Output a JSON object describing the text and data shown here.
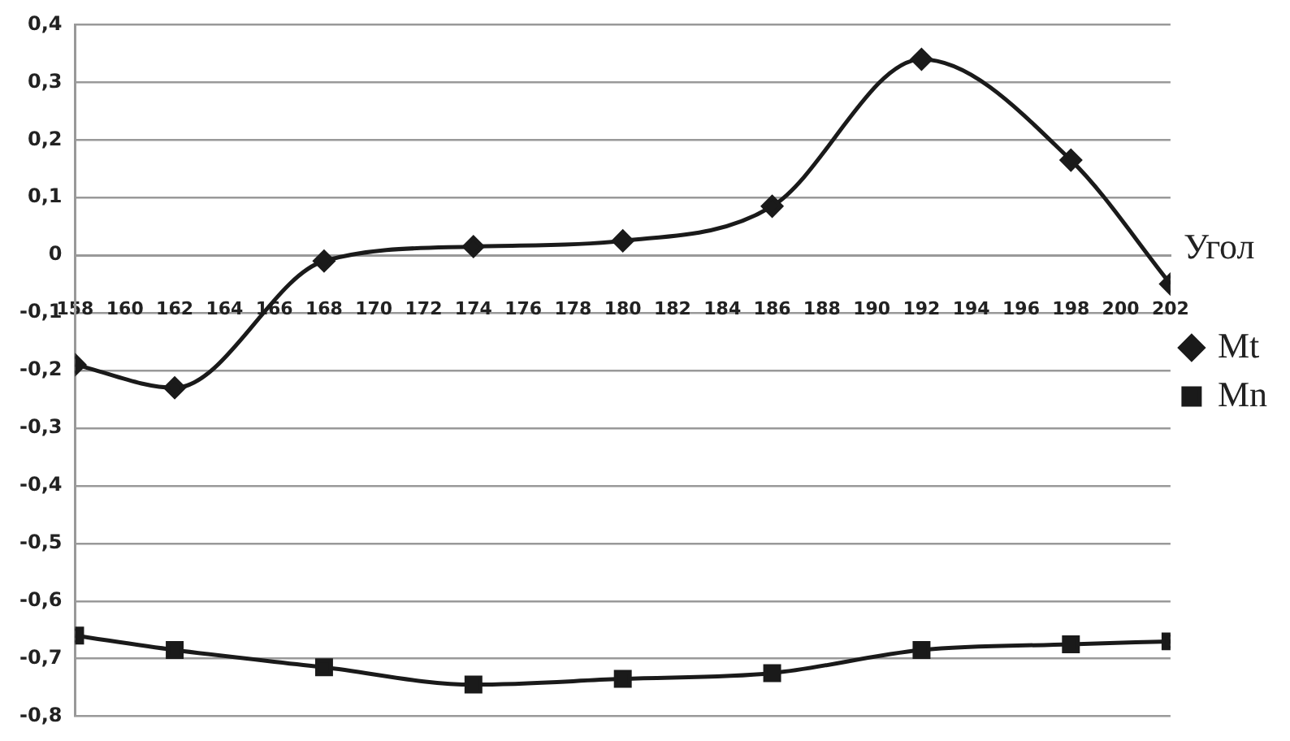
{
  "chart_data": {
    "type": "line",
    "xlabel": "Угол",
    "x": [
      158,
      162,
      168,
      174,
      180,
      186,
      192,
      198,
      202
    ],
    "series": [
      {
        "name": "Mt",
        "color": "#1a1a1a",
        "marker": "diamond",
        "values": [
          -0.19,
          -0.23,
          -0.01,
          0.015,
          0.025,
          0.085,
          0.34,
          0.165,
          -0.05
        ]
      },
      {
        "name": "Mn",
        "color": "#1a1a1a",
        "marker": "square",
        "values": [
          -0.66,
          -0.685,
          -0.715,
          -0.745,
          -0.735,
          -0.725,
          -0.685,
          -0.675,
          -0.67
        ]
      }
    ],
    "xlim": [
      158,
      202
    ],
    "xticks": [
      158,
      160,
      162,
      164,
      166,
      168,
      170,
      172,
      174,
      176,
      178,
      180,
      182,
      184,
      186,
      188,
      190,
      192,
      194,
      196,
      198,
      200,
      202
    ],
    "ylim": [
      -0.8,
      0.4
    ],
    "yticks": [
      {
        "value": -0.8,
        "label": "-0,8"
      },
      {
        "value": -0.7,
        "label": "-0,7"
      },
      {
        "value": -0.6,
        "label": "-0,6"
      },
      {
        "value": -0.5,
        "label": "-0,5"
      },
      {
        "value": -0.4,
        "label": "-0,4"
      },
      {
        "value": -0.3,
        "label": "-0,3"
      },
      {
        "value": -0.2,
        "label": "-0,2"
      },
      {
        "value": -0.1,
        "label": "-0,1"
      },
      {
        "value": 0,
        "label": "0"
      },
      {
        "value": 0.1,
        "label": "0,1"
      },
      {
        "value": 0.2,
        "label": "0,2"
      },
      {
        "value": 0.3,
        "label": "0,3"
      },
      {
        "value": 0.4,
        "label": "0,4"
      }
    ],
    "grid": "y",
    "legend": "right",
    "line_style": "solid"
  }
}
